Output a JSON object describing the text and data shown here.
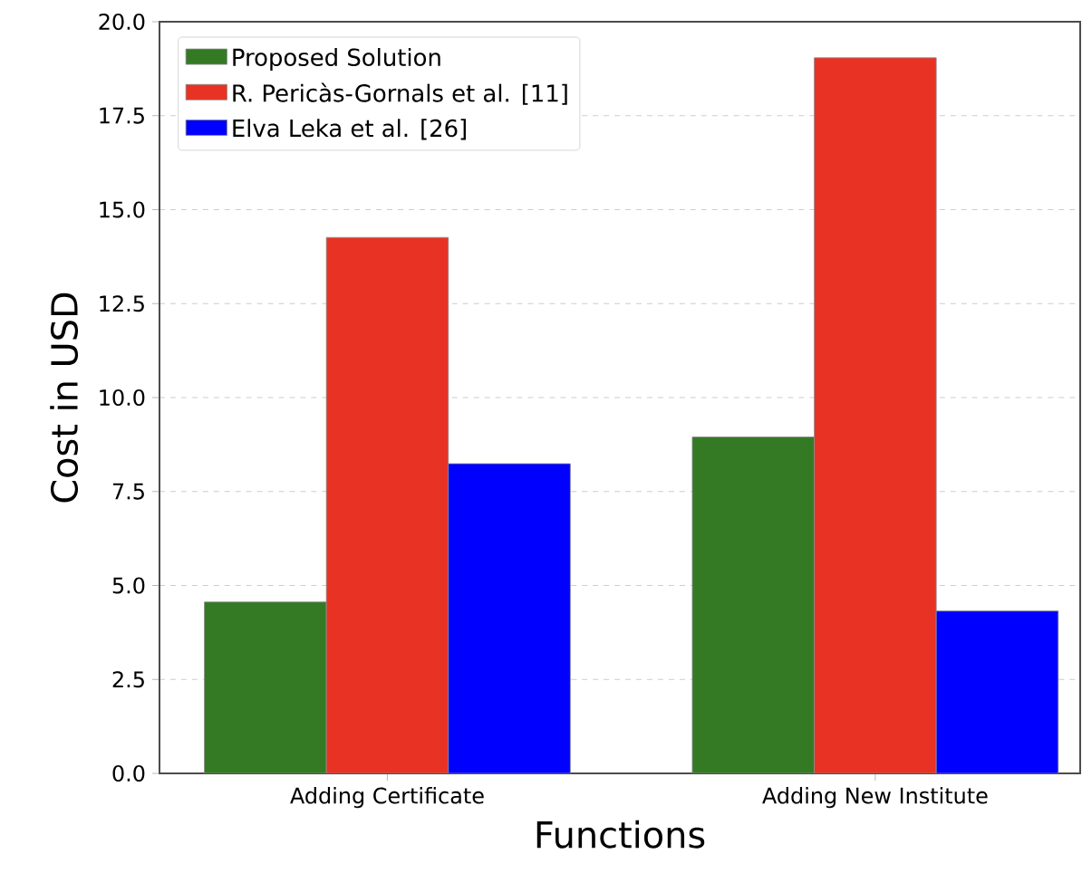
{
  "chart_data": {
    "type": "bar",
    "xlabel": "Functions",
    "ylabel": "Cost in USD",
    "categories": [
      "Adding Certificate",
      "Adding New Institute"
    ],
    "series": [
      {
        "name": "Proposed Solution",
        "color": "#347a24",
        "values": [
          4.56,
          8.95
        ]
      },
      {
        "name": "R. Pericàs-Gornals et al. [11]",
        "color": "#e83223",
        "values": [
          14.26,
          19.04
        ]
      },
      {
        "name": "Elva Leka et al. [26]",
        "color": "#0000ff",
        "values": [
          8.24,
          4.32
        ]
      }
    ],
    "ylim": [
      0,
      20
    ],
    "yticks": [
      {
        "value": 0,
        "label": "0.0"
      },
      {
        "value": 2.5,
        "label": "2.5"
      },
      {
        "value": 5,
        "label": "5.0"
      },
      {
        "value": 7.5,
        "label": "7.5"
      },
      {
        "value": 10,
        "label": "10.0"
      },
      {
        "value": 12.5,
        "label": "12.5"
      },
      {
        "value": 15,
        "label": "15.0"
      },
      {
        "value": 17.5,
        "label": "17.5"
      },
      {
        "value": 20,
        "label": "20.0"
      }
    ],
    "grid": "y",
    "legend": "top left"
  }
}
